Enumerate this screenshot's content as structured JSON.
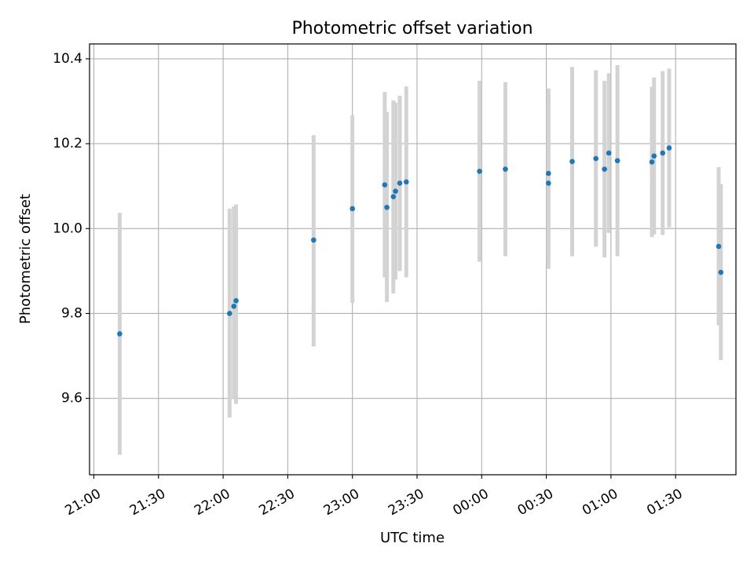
{
  "chart_data": {
    "type": "scatter",
    "title": "Photometric offset variation",
    "xlabel": "UTC time",
    "ylabel": "Photometric offset",
    "x_axis_kind": "time",
    "xlim": [
      "20:58",
      "01:58"
    ],
    "ylim": [
      9.42,
      10.435
    ],
    "grid": true,
    "xticks": [
      "21:00",
      "21:30",
      "22:00",
      "22:30",
      "23:00",
      "23:30",
      "00:00",
      "00:30",
      "01:00",
      "01:30"
    ],
    "yticks": [
      "9.6",
      "9.8",
      "10.0",
      "10.2",
      "10.4"
    ],
    "colors": {
      "marker": "#1f77b4",
      "errorbar": "#d3d3d3",
      "grid": "#b0b0b0"
    },
    "points": [
      {
        "time": "21:12",
        "value": 9.752,
        "low": 9.467,
        "high": 10.037
      },
      {
        "time": "22:03",
        "value": 9.8,
        "low": 9.555,
        "high": 10.047
      },
      {
        "time": "22:05",
        "value": 9.817,
        "low": 9.6,
        "high": 10.052
      },
      {
        "time": "22:06",
        "value": 9.83,
        "low": 9.587,
        "high": 10.057
      },
      {
        "time": "22:42",
        "value": 9.973,
        "low": 9.722,
        "high": 10.22
      },
      {
        "time": "23:00",
        "value": 10.047,
        "low": 9.825,
        "high": 10.267
      },
      {
        "time": "23:15",
        "value": 10.103,
        "low": 9.885,
        "high": 10.322
      },
      {
        "time": "23:16",
        "value": 10.05,
        "low": 9.827,
        "high": 10.275
      },
      {
        "time": "23:19",
        "value": 10.075,
        "low": 9.847,
        "high": 10.302
      },
      {
        "time": "23:20",
        "value": 10.088,
        "low": 9.88,
        "high": 10.297
      },
      {
        "time": "23:22",
        "value": 10.107,
        "low": 9.9,
        "high": 10.313
      },
      {
        "time": "23:25",
        "value": 10.11,
        "low": 9.885,
        "high": 10.335
      },
      {
        "time": "23:59",
        "value": 10.135,
        "low": 9.922,
        "high": 10.348
      },
      {
        "time": "00:11",
        "value": 10.14,
        "low": 9.935,
        "high": 10.345
      },
      {
        "time": "00:31",
        "value": 10.107,
        "low": 9.905,
        "high": 10.308
      },
      {
        "time": "00:31",
        "value": 10.13,
        "low": 9.93,
        "high": 10.33
      },
      {
        "time": "00:42",
        "value": 10.158,
        "low": 9.935,
        "high": 10.381
      },
      {
        "time": "00:53",
        "value": 10.165,
        "low": 9.957,
        "high": 10.373
      },
      {
        "time": "00:57",
        "value": 10.14,
        "low": 9.932,
        "high": 10.348
      },
      {
        "time": "00:59",
        "value": 10.178,
        "low": 9.99,
        "high": 10.366
      },
      {
        "time": "01:03",
        "value": 10.16,
        "low": 9.935,
        "high": 10.385
      },
      {
        "time": "01:19",
        "value": 10.157,
        "low": 9.98,
        "high": 10.334
      },
      {
        "time": "01:20",
        "value": 10.171,
        "low": 9.986,
        "high": 10.356
      },
      {
        "time": "01:24",
        "value": 10.178,
        "low": 9.985,
        "high": 10.371
      },
      {
        "time": "01:27",
        "value": 10.19,
        "low": 10.003,
        "high": 10.377
      },
      {
        "time": "01:50",
        "value": 9.958,
        "low": 9.772,
        "high": 10.145
      },
      {
        "time": "01:51",
        "value": 9.897,
        "low": 9.69,
        "high": 10.105
      }
    ]
  }
}
